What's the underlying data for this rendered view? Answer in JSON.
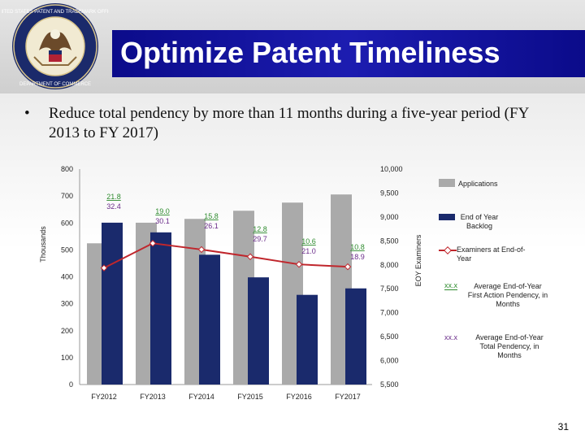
{
  "slide": {
    "title": "Optimize Patent Timeliness",
    "bullet_symbol": "•",
    "bullet_text": "Reduce total pendency by more than 11 months during a five-year period (FY 2013 to FY 2017)",
    "page_number": "31"
  },
  "seal": {
    "text": "UNITED STATES PATENT AND TRADEMARK OFFICE · DEPARTMENT OF COMMERCE"
  },
  "chart_data": {
    "type": "bar",
    "categories": [
      "FY2012",
      "FY2013",
      "FY2014",
      "FY2015",
      "FY2016",
      "FY2017"
    ],
    "series": [
      {
        "name": "Applications",
        "axis": "right",
        "values": [
          8450,
          8880,
          8960,
          9130,
          9300,
          9470
        ],
        "color": "#aaaaaa"
      },
      {
        "name": "End of Year Backlog",
        "axis": "left",
        "values": [
          601,
          565,
          482,
          398,
          333,
          357
        ],
        "color": "#1a2a6c"
      },
      {
        "name": "Examiners at End-of-Year",
        "axis": "right",
        "values": [
          7935,
          8450,
          8320,
          8170,
          8010,
          7960
        ],
        "color": "#c0262c"
      }
    ],
    "labels": [
      {
        "category": "FY2012",
        "first_action": "21.8",
        "total": "32.4"
      },
      {
        "category": "FY2013",
        "first_action": "19.0",
        "total": "30.1"
      },
      {
        "category": "FY2014",
        "first_action": "15.8",
        "total": "26.1"
      },
      {
        "category": "FY2015",
        "first_action": "12.8",
        "total": "29.7"
      },
      {
        "category": "FY2016",
        "first_action": "10.6",
        "total": "21.0"
      },
      {
        "category": "FY2017",
        "first_action": "10.8",
        "total": "18.9"
      }
    ],
    "left_axis": {
      "label": "Thousands",
      "ticks": [
        "0",
        "100",
        "200",
        "300",
        "400",
        "500",
        "600",
        "700",
        "800"
      ],
      "ylim": [
        0,
        800
      ]
    },
    "right_axis": {
      "label": "EOY Examiners",
      "ticks": [
        "5,500",
        "6,000",
        "6,500",
        "7,000",
        "7,500",
        "8,000",
        "8,500",
        "9,000",
        "9,500",
        "10,000"
      ],
      "ylim": [
        5500,
        10000
      ]
    },
    "legend": {
      "applications": "Applications",
      "backlog": "End of Year Backlog",
      "examiners": "Examiners at End-of-Year",
      "first_action_code": "xx.x",
      "first_action_desc": "Average End-of-Year First Action Pendency, in Months",
      "total_code": "xx.x",
      "total_desc": "Average End-of-Year Total Pendency, in Months"
    },
    "colors": {
      "first_action_label": "#2e8b2e",
      "total_label": "#6a2c8a"
    }
  }
}
